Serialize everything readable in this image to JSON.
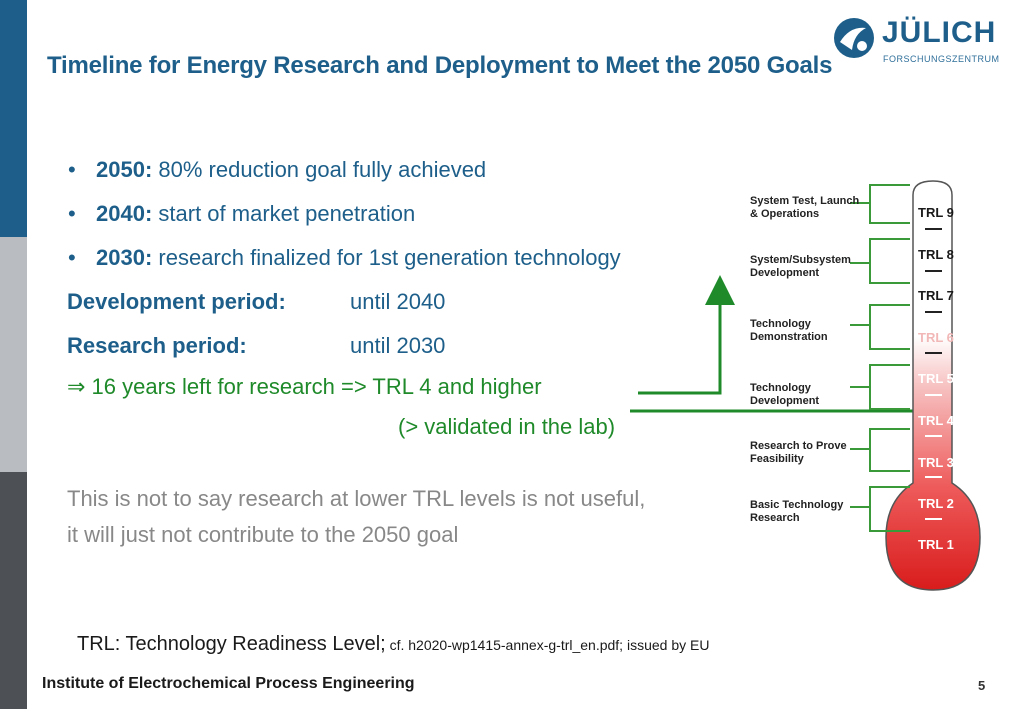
{
  "header": {
    "title": "Timeline for Energy Research and Deployment to Meet the 2050 Goals",
    "logo": {
      "name": "JÜLICH",
      "subtitle": "FORSCHUNGSZENTRUM"
    }
  },
  "bullets": [
    {
      "year": "2050:",
      "text": " 80% reduction goal fully achieved"
    },
    {
      "year": "2040:",
      "text": " start of market penetration"
    },
    {
      "year": "2030:",
      "text": " research finalized for 1st generation technology"
    }
  ],
  "periods": [
    {
      "label": "Development period:",
      "value": "until 2040"
    },
    {
      "label": "Research period:",
      "value": "until 2030"
    }
  ],
  "implication": {
    "arrow": "⇒",
    "line1": " 16 years left for research => TRL 4 and higher",
    "line2": "(> validated in the lab)"
  },
  "disclaimer": {
    "line1": "This is not to say research at lower TRL levels is not useful,",
    "line2": "it will just not contribute to the 2050 goal"
  },
  "note": {
    "main": "TRL: Technology Readiness Level;",
    "source": " cf. h2020-wp1415-annex-g-trl_en.pdf; issued by EU"
  },
  "footer": {
    "institute": "Institute of Electrochemical Process Engineering",
    "page": "5"
  },
  "diagram": {
    "stages": [
      {
        "line1": "System Test, Launch",
        "line2": "& Operations"
      },
      {
        "line1": "System/Subsystem",
        "line2": "Development"
      },
      {
        "line1": "Technology",
        "line2": "Demonstration"
      },
      {
        "line1": "Technology",
        "line2": "Development"
      },
      {
        "line1": "Research to Prove",
        "line2": "Feasibility"
      },
      {
        "line1": "Basic Technology",
        "line2": "Research"
      }
    ],
    "levels": [
      "TRL 9",
      "TRL 8",
      "TRL 7",
      "TRL 6",
      "TRL 5",
      "TRL 4",
      "TRL 3",
      "TRL 2",
      "TRL 1"
    ]
  },
  "colors": {
    "brand": "#1d5f8a",
    "green": "#1f8a2a",
    "gray": "#888888"
  }
}
